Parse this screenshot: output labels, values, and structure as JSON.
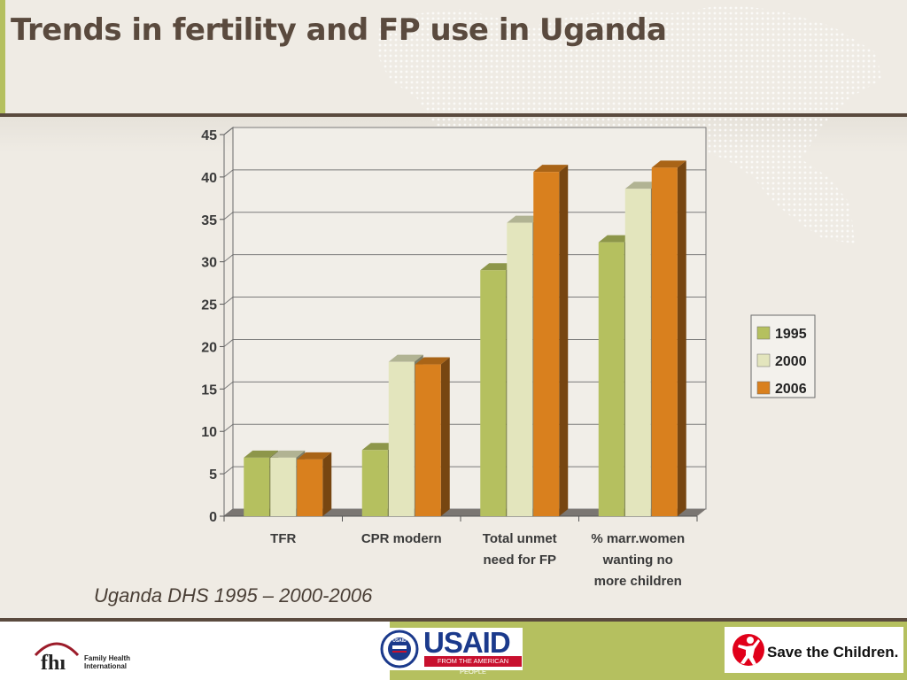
{
  "slide": {
    "title": "Trends in fertility and FP use in Uganda",
    "source": "Uganda DHS 1995 – 2000-2006"
  },
  "logos": {
    "fhi_mark": "fhı",
    "fhi_name_line1": "Family Health",
    "fhi_name_line2": "International",
    "usaid_word": "USAID",
    "usaid_tagline": "FROM THE AMERICAN PEOPLE",
    "usaid_seal_text": "USAID",
    "stc_name": "Save the Children."
  },
  "colors": {
    "background": "#efebe4",
    "title": "#5a4a3e",
    "accent_green": "#b5c05f",
    "series_1995": "#b5c05f",
    "series_2000": "#e3e5bd",
    "series_2006": "#d9801e"
  },
  "chart_data": {
    "type": "bar",
    "style": "3d-clustered-column",
    "categories": [
      "TFR",
      "CPR modern",
      "Total unmet need for FP",
      "% marr.women wanting no more children"
    ],
    "category_lines": [
      [
        "TFR"
      ],
      [
        "CPR modern"
      ],
      [
        "Total unmet",
        "need for FP"
      ],
      [
        "% marr.women",
        "wanting no",
        "more children"
      ]
    ],
    "series": [
      {
        "name": "1995",
        "values": [
          6.9,
          7.8,
          29.0,
          32.3
        ]
      },
      {
        "name": "2000",
        "values": [
          6.9,
          18.2,
          34.6,
          38.6
        ]
      },
      {
        "name": "2006",
        "values": [
          6.7,
          17.9,
          40.6,
          41.1
        ]
      }
    ],
    "ylim": [
      0,
      45
    ],
    "yticks": [
      0,
      5,
      10,
      15,
      20,
      25,
      30,
      35,
      40,
      45
    ],
    "grid": true,
    "legend_position": "right"
  }
}
